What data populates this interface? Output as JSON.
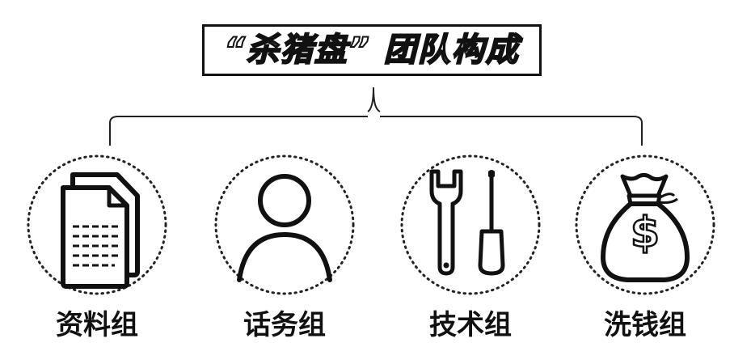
{
  "title": "“杀猪盘” 团队构成",
  "groups": [
    {
      "label": "资料组",
      "icon": "document-icon"
    },
    {
      "label": "话务组",
      "icon": "person-icon"
    },
    {
      "label": "技术组",
      "icon": "tools-icon"
    },
    {
      "label": "洗钱组",
      "icon": "money-bag-icon"
    }
  ],
  "money_symbol": "$"
}
